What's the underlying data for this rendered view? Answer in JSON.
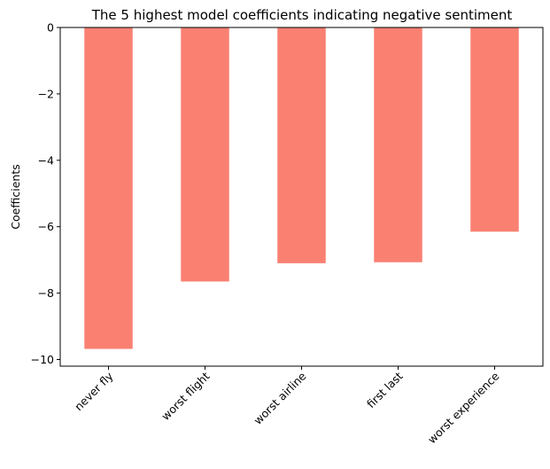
{
  "chart_data": {
    "type": "bar",
    "title": "The 5 highest model coefficients indicating negative sentiment",
    "xlabel": "",
    "ylabel": "Coefficients",
    "categories": [
      "never fly",
      "worst flight",
      "worst airline",
      "first last",
      "worst experience"
    ],
    "values": [
      -9.68,
      -7.65,
      -7.1,
      -7.07,
      -6.15
    ],
    "ylim": [
      -10.2,
      0
    ],
    "yticks": [
      0,
      -2,
      -4,
      -6,
      -8,
      -10
    ],
    "ytick_labels": [
      "0",
      "−2",
      "−4",
      "−6",
      "−8",
      "−10"
    ],
    "bar_color": "#fa8072",
    "grid": false,
    "legend": "none"
  }
}
